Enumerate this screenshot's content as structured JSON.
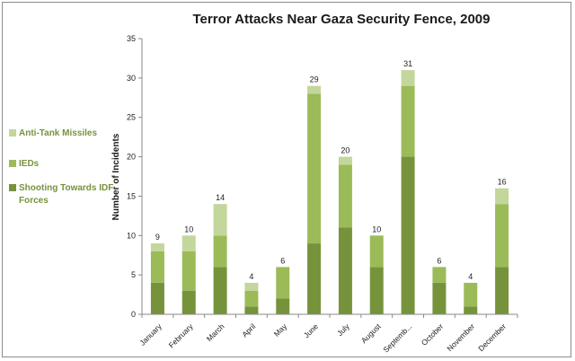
{
  "chart_data": {
    "type": "stacked-bar",
    "title": "Terror Attacks Near Gaza Security Fence, 2009",
    "xlabel": "",
    "ylabel": "Number of Incidents",
    "ylim": [
      0,
      35
    ],
    "yticks": [
      0,
      5,
      10,
      15,
      20,
      25,
      30,
      35
    ],
    "grid": false,
    "legend_position": "left",
    "categories": [
      "January",
      "February",
      "March",
      "April",
      "May",
      "June",
      "July",
      "August",
      "Septemb...",
      "October",
      "November",
      "December"
    ],
    "series": [
      {
        "name": "Shooting Towards IDF Forces",
        "color": "#76933c",
        "values": [
          4,
          3,
          6,
          1,
          2,
          9,
          11,
          6,
          20,
          4,
          1,
          6
        ]
      },
      {
        "name": "IEDs",
        "color": "#9bbb59",
        "values": [
          4,
          5,
          4,
          2,
          4,
          19,
          8,
          4,
          9,
          2,
          3,
          8
        ]
      },
      {
        "name": "Anti-Tank Missiles",
        "color": "#c3d69b",
        "values": [
          1,
          2,
          4,
          1,
          0,
          1,
          1,
          0,
          2,
          0,
          0,
          2
        ]
      }
    ],
    "totals": [
      9,
      10,
      14,
      4,
      6,
      29,
      20,
      10,
      31,
      6,
      4,
      16
    ],
    "legend_text_color": "#76933c",
    "legend_entries": [
      {
        "name": "Anti-Tank Missiles",
        "color": "#c3d69b",
        "label_lines": [
          "Anti-Tank Missiles"
        ]
      },
      {
        "name": "IEDs",
        "color": "#9bbb59",
        "label_lines": [
          "IEDs"
        ]
      },
      {
        "name": "Shooting Towards IDF Forces",
        "color": "#76933c",
        "label_lines": [
          "Shooting Towards IDF",
          "Forces"
        ]
      }
    ]
  }
}
